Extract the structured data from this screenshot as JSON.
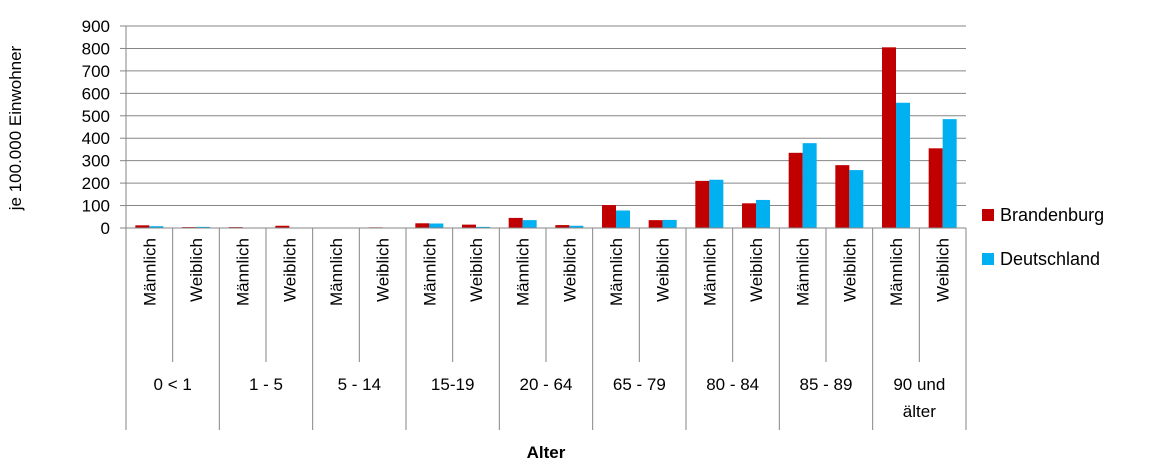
{
  "chart_data": {
    "type": "bar",
    "ylabel": "je 100.000 Einwohner",
    "xlabel": "Alter",
    "ylim": [
      0,
      900
    ],
    "yticks": [
      0,
      100,
      200,
      300,
      400,
      500,
      600,
      700,
      800,
      900
    ],
    "grid": true,
    "legend_position": "right",
    "groups": [
      {
        "label_lines": [
          "0 < 1"
        ],
        "subcategories": [
          "Männlich",
          "Weiblich"
        ]
      },
      {
        "label_lines": [
          "1 - 5"
        ],
        "subcategories": [
          "Männlich",
          "Weiblich"
        ]
      },
      {
        "label_lines": [
          "5 - 14"
        ],
        "subcategories": [
          "Männlich",
          "Weiblich"
        ]
      },
      {
        "label_lines": [
          "15-19"
        ],
        "subcategories": [
          "Männlich",
          "Weiblich"
        ]
      },
      {
        "label_lines": [
          "20 - 64"
        ],
        "subcategories": [
          "Männlich",
          "Weiblich"
        ]
      },
      {
        "label_lines": [
          "65 - 79"
        ],
        "subcategories": [
          "Männlich",
          "Weiblich"
        ]
      },
      {
        "label_lines": [
          "80 - 84"
        ],
        "subcategories": [
          "Männlich",
          "Weiblich"
        ]
      },
      {
        "label_lines": [
          "85 - 89"
        ],
        "subcategories": [
          "Männlich",
          "Weiblich"
        ]
      },
      {
        "label_lines": [
          "90 und",
          "älter"
        ],
        "subcategories": [
          "Männlich",
          "Weiblich"
        ]
      }
    ],
    "series": [
      {
        "name": "Brandenburg",
        "color": "#c00000",
        "values": [
          12,
          4,
          4,
          10,
          2,
          3,
          21,
          15,
          45,
          13,
          102,
          35,
          210,
          110,
          335,
          280,
          805,
          355
        ]
      },
      {
        "name": "Deutschland",
        "color": "#00b0f0",
        "values": [
          8,
          5,
          2,
          1,
          1,
          2,
          20,
          5,
          35,
          10,
          78,
          36,
          215,
          125,
          378,
          258,
          558,
          485
        ]
      }
    ]
  }
}
